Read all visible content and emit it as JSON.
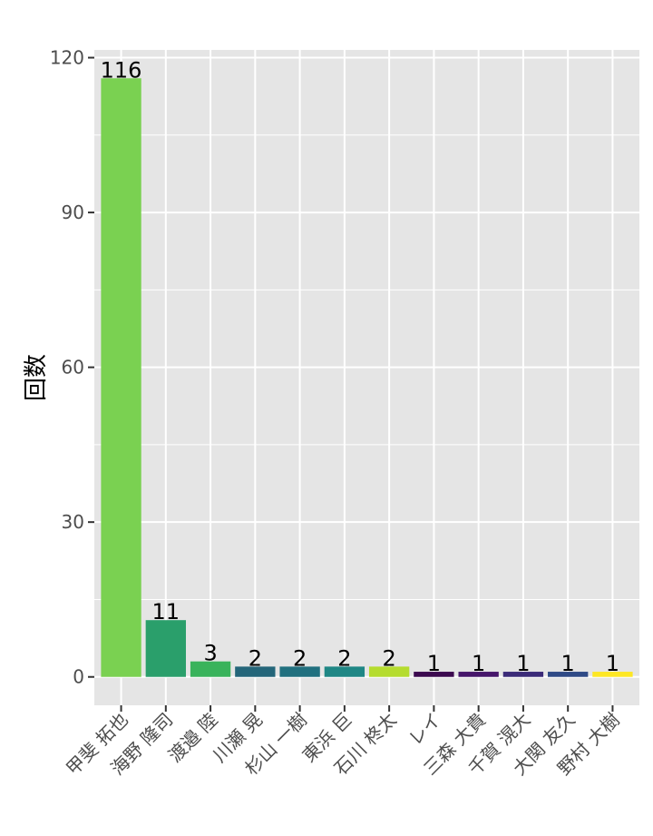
{
  "chart_data": {
    "type": "bar",
    "categories": [
      "甲斐 拓也",
      "海野 隆司",
      "渡邉 陸",
      "川瀬 晃",
      "杉山 一樹",
      "東浜 巨",
      "石川 柊太",
      "レイ",
      "三森 大貴",
      "千賀 滉大",
      "大関 友久",
      "野村 大樹"
    ],
    "values": [
      116,
      11,
      3,
      2,
      2,
      2,
      2,
      1,
      1,
      1,
      1,
      1
    ],
    "data_labels": [
      "116",
      "11",
      "3",
      "2",
      "2",
      "2",
      "2",
      "1",
      "1",
      "1",
      "1",
      "1"
    ],
    "bar_colors": [
      "#7AD151",
      "#2A9F6B",
      "#39B35B",
      "#24667A",
      "#21707F",
      "#1F8785",
      "#B5DC2E",
      "#3C0A4F",
      "#46166A",
      "#3B2B78",
      "#2F4A86",
      "#FDE725"
    ],
    "ylabel": "回数",
    "xlabel": "",
    "yticks": [
      0,
      30,
      60,
      90,
      120
    ],
    "ytick_labels": [
      "0",
      "30",
      "60",
      "90",
      "120"
    ],
    "ylim": [
      -5.5,
      121.5
    ],
    "grid": true,
    "panel_background": "#E5E5E5",
    "grid_color": "#FFFFFF"
  }
}
